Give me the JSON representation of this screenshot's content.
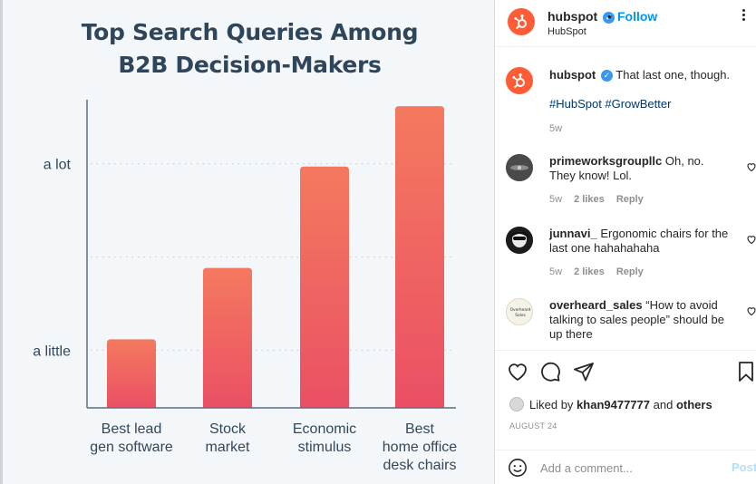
{
  "chart_data": {
    "type": "bar",
    "title": "Top Search Queries Among B2B Decision-Makers",
    "title_lines": [
      "Top Search Queries Among",
      "B2B Decision-Makers"
    ],
    "categories": [
      [
        "Best lead",
        "gen software"
      ],
      [
        "Stock",
        "market"
      ],
      [
        "Economic",
        "stimulus"
      ],
      [
        "Best",
        "home office",
        "desk chairs"
      ]
    ],
    "values": [
      0.25,
      0.51,
      0.88,
      1.1
    ],
    "ylim": [
      0,
      1.15
    ],
    "y_ticks": [
      {
        "label": "a little",
        "value": 0.21
      },
      {
        "label": "a lot",
        "value": 0.89
      }
    ],
    "grid": "dotted horizontal",
    "colors": {
      "bar_top": "#f4795f",
      "bar_bottom": "#ea5064",
      "axis": "#5a6f80",
      "text": "#33475b",
      "title": "#2f4559"
    }
  },
  "sidebar": {
    "account": "hubspot",
    "verified": "✓",
    "dot": "•",
    "follow": "Follow",
    "subtitle": "HubSpot",
    "more_icon": "more-horizontal-icon",
    "caption": {
      "user": "hubspot",
      "text": "That last one, though.",
      "hashtags": "#HubSpot #GrowBetter",
      "time": "5w"
    },
    "comments": [
      {
        "user": "primeworksgroupllc",
        "text": "Oh, no. They know! Lol.",
        "time": "5w",
        "likes": "2 likes",
        "reply": "Reply"
      },
      {
        "user": "junnavi_",
        "text": "Ergonomic chairs for the last one hahahahaha",
        "time": "5w",
        "likes": "2 likes",
        "reply": "Reply"
      },
      {
        "user": "overheard_sales",
        "text": "“How to avoid talking to sales people” should be up there",
        "avatar_text": "Overheard Sales"
      }
    ],
    "liked_by": {
      "prefix": "Liked by",
      "user": "khan9477777",
      "middle": "and",
      "others": "others"
    },
    "date": "AUGUST 24",
    "comment_placeholder": "Add a comment...",
    "post_label": "Post",
    "colors": {
      "brand": "#ff5c35",
      "link": "#0095f6",
      "verified": "#3897f0"
    }
  }
}
